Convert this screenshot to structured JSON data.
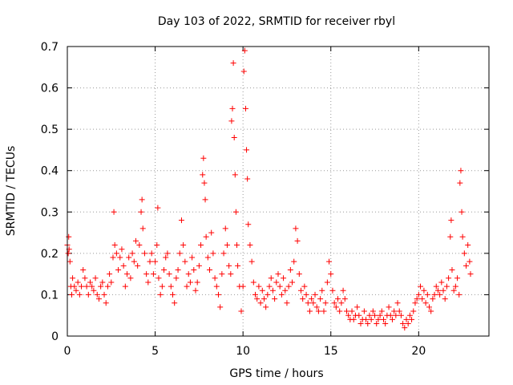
{
  "chart_data": {
    "type": "scatter",
    "title": "Day 103 of 2022, SRMTID for receiver rbyl",
    "xlabel": "GPS time / hours",
    "ylabel": "SRMTID / TECUs",
    "xlim": [
      0,
      24
    ],
    "ylim": [
      0,
      0.7
    ],
    "xticks": [
      0,
      5,
      10,
      15,
      20
    ],
    "yticks": [
      0,
      0.1,
      0.2,
      0.3,
      0.4,
      0.5,
      0.6,
      0.7
    ],
    "grid": true,
    "marker": "+",
    "color": "#ff0000",
    "series": [
      {
        "name": "SRMTID",
        "points": [
          [
            0.0,
            0.22
          ],
          [
            0.05,
            0.2
          ],
          [
            0.08,
            0.24
          ],
          [
            0.1,
            0.21
          ],
          [
            0.15,
            0.18
          ],
          [
            0.2,
            0.12
          ],
          [
            0.25,
            0.1
          ],
          [
            0.3,
            0.14
          ],
          [
            0.4,
            0.12
          ],
          [
            0.5,
            0.11
          ],
          [
            0.6,
            0.13
          ],
          [
            0.7,
            0.1
          ],
          [
            0.8,
            0.12
          ],
          [
            0.9,
            0.16
          ],
          [
            1.0,
            0.14
          ],
          [
            1.1,
            0.12
          ],
          [
            1.2,
            0.1
          ],
          [
            1.3,
            0.13
          ],
          [
            1.4,
            0.12
          ],
          [
            1.5,
            0.11
          ],
          [
            1.6,
            0.14
          ],
          [
            1.7,
            0.1
          ],
          [
            1.8,
            0.09
          ],
          [
            1.9,
            0.12
          ],
          [
            2.0,
            0.13
          ],
          [
            2.1,
            0.1
          ],
          [
            2.2,
            0.08
          ],
          [
            2.3,
            0.12
          ],
          [
            2.4,
            0.15
          ],
          [
            2.5,
            0.13
          ],
          [
            2.6,
            0.19
          ],
          [
            2.65,
            0.3
          ],
          [
            2.7,
            0.22
          ],
          [
            2.8,
            0.2
          ],
          [
            2.9,
            0.16
          ],
          [
            3.0,
            0.19
          ],
          [
            3.1,
            0.21
          ],
          [
            3.2,
            0.17
          ],
          [
            3.3,
            0.12
          ],
          [
            3.4,
            0.15
          ],
          [
            3.5,
            0.19
          ],
          [
            3.6,
            0.14
          ],
          [
            3.7,
            0.2
          ],
          [
            3.8,
            0.18
          ],
          [
            3.9,
            0.23
          ],
          [
            4.0,
            0.17
          ],
          [
            4.1,
            0.22
          ],
          [
            4.2,
            0.3
          ],
          [
            4.25,
            0.33
          ],
          [
            4.3,
            0.26
          ],
          [
            4.4,
            0.2
          ],
          [
            4.5,
            0.15
          ],
          [
            4.6,
            0.13
          ],
          [
            4.7,
            0.18
          ],
          [
            4.8,
            0.2
          ],
          [
            4.9,
            0.15
          ],
          [
            5.0,
            0.18
          ],
          [
            5.1,
            0.22
          ],
          [
            5.15,
            0.31
          ],
          [
            5.2,
            0.14
          ],
          [
            5.3,
            0.1
          ],
          [
            5.4,
            0.12
          ],
          [
            5.5,
            0.16
          ],
          [
            5.6,
            0.19
          ],
          [
            5.7,
            0.2
          ],
          [
            5.8,
            0.15
          ],
          [
            5.9,
            0.12
          ],
          [
            6.0,
            0.1
          ],
          [
            6.1,
            0.08
          ],
          [
            6.2,
            0.14
          ],
          [
            6.3,
            0.16
          ],
          [
            6.4,
            0.2
          ],
          [
            6.5,
            0.28
          ],
          [
            6.6,
            0.22
          ],
          [
            6.7,
            0.18
          ],
          [
            6.8,
            0.12
          ],
          [
            6.9,
            0.15
          ],
          [
            7.0,
            0.13
          ],
          [
            7.1,
            0.19
          ],
          [
            7.2,
            0.16
          ],
          [
            7.3,
            0.11
          ],
          [
            7.4,
            0.13
          ],
          [
            7.5,
            0.17
          ],
          [
            7.6,
            0.22
          ],
          [
            7.7,
            0.39
          ],
          [
            7.75,
            0.43
          ],
          [
            7.8,
            0.37
          ],
          [
            7.85,
            0.33
          ],
          [
            7.9,
            0.24
          ],
          [
            8.0,
            0.19
          ],
          [
            8.1,
            0.16
          ],
          [
            8.2,
            0.25
          ],
          [
            8.3,
            0.2
          ],
          [
            8.4,
            0.14
          ],
          [
            8.5,
            0.12
          ],
          [
            8.6,
            0.1
          ],
          [
            8.7,
            0.07
          ],
          [
            8.8,
            0.15
          ],
          [
            8.9,
            0.2
          ],
          [
            9.0,
            0.26
          ],
          [
            9.1,
            0.22
          ],
          [
            9.2,
            0.17
          ],
          [
            9.3,
            0.15
          ],
          [
            9.35,
            0.52
          ],
          [
            9.4,
            0.55
          ],
          [
            9.45,
            0.66
          ],
          [
            9.5,
            0.48
          ],
          [
            9.55,
            0.39
          ],
          [
            9.6,
            0.3
          ],
          [
            9.65,
            0.22
          ],
          [
            9.7,
            0.17
          ],
          [
            9.8,
            0.12
          ],
          [
            9.9,
            0.06
          ],
          [
            10.0,
            0.12
          ],
          [
            10.05,
            0.64
          ],
          [
            10.1,
            0.69
          ],
          [
            10.15,
            0.55
          ],
          [
            10.2,
            0.45
          ],
          [
            10.25,
            0.38
          ],
          [
            10.3,
            0.27
          ],
          [
            10.4,
            0.22
          ],
          [
            10.5,
            0.18
          ],
          [
            10.6,
            0.13
          ],
          [
            10.7,
            0.1
          ],
          [
            10.8,
            0.09
          ],
          [
            10.9,
            0.12
          ],
          [
            11.0,
            0.08
          ],
          [
            11.1,
            0.11
          ],
          [
            11.2,
            0.09
          ],
          [
            11.3,
            0.07
          ],
          [
            11.4,
            0.1
          ],
          [
            11.5,
            0.12
          ],
          [
            11.6,
            0.14
          ],
          [
            11.7,
            0.11
          ],
          [
            11.8,
            0.09
          ],
          [
            11.9,
            0.13
          ],
          [
            12.0,
            0.15
          ],
          [
            12.1,
            0.12
          ],
          [
            12.2,
            0.1
          ],
          [
            12.3,
            0.14
          ],
          [
            12.4,
            0.11
          ],
          [
            12.5,
            0.08
          ],
          [
            12.6,
            0.12
          ],
          [
            12.7,
            0.16
          ],
          [
            12.8,
            0.13
          ],
          [
            12.9,
            0.18
          ],
          [
            13.0,
            0.26
          ],
          [
            13.1,
            0.23
          ],
          [
            13.2,
            0.15
          ],
          [
            13.3,
            0.11
          ],
          [
            13.4,
            0.09
          ],
          [
            13.5,
            0.12
          ],
          [
            13.6,
            0.1
          ],
          [
            13.7,
            0.08
          ],
          [
            13.8,
            0.06
          ],
          [
            13.9,
            0.09
          ],
          [
            14.0,
            0.08
          ],
          [
            14.1,
            0.1
          ],
          [
            14.2,
            0.07
          ],
          [
            14.3,
            0.06
          ],
          [
            14.4,
            0.09
          ],
          [
            14.5,
            0.11
          ],
          [
            14.6,
            0.06
          ],
          [
            14.7,
            0.08
          ],
          [
            14.8,
            0.13
          ],
          [
            14.9,
            0.18
          ],
          [
            15.0,
            0.15
          ],
          [
            15.1,
            0.11
          ],
          [
            15.2,
            0.08
          ],
          [
            15.3,
            0.07
          ],
          [
            15.4,
            0.09
          ],
          [
            15.5,
            0.06
          ],
          [
            15.6,
            0.08
          ],
          [
            15.7,
            0.11
          ],
          [
            15.8,
            0.09
          ],
          [
            15.9,
            0.06
          ],
          [
            16.0,
            0.05
          ],
          [
            16.1,
            0.04
          ],
          [
            16.2,
            0.06
          ],
          [
            16.3,
            0.04
          ],
          [
            16.4,
            0.05
          ],
          [
            16.5,
            0.07
          ],
          [
            16.6,
            0.05
          ],
          [
            16.7,
            0.03
          ],
          [
            16.8,
            0.04
          ],
          [
            16.9,
            0.06
          ],
          [
            17.0,
            0.04
          ],
          [
            17.1,
            0.03
          ],
          [
            17.2,
            0.05
          ],
          [
            17.3,
            0.04
          ],
          [
            17.4,
            0.06
          ],
          [
            17.5,
            0.05
          ],
          [
            17.6,
            0.03
          ],
          [
            17.7,
            0.04
          ],
          [
            17.8,
            0.05
          ],
          [
            17.9,
            0.06
          ],
          [
            18.0,
            0.04
          ],
          [
            18.1,
            0.03
          ],
          [
            18.2,
            0.05
          ],
          [
            18.3,
            0.07
          ],
          [
            18.4,
            0.05
          ],
          [
            18.5,
            0.04
          ],
          [
            18.6,
            0.06
          ],
          [
            18.7,
            0.05
          ],
          [
            18.8,
            0.08
          ],
          [
            18.9,
            0.06
          ],
          [
            19.0,
            0.05
          ],
          [
            19.1,
            0.03
          ],
          [
            19.2,
            0.02
          ],
          [
            19.3,
            0.04
          ],
          [
            19.4,
            0.03
          ],
          [
            19.5,
            0.05
          ],
          [
            19.6,
            0.04
          ],
          [
            19.7,
            0.06
          ],
          [
            19.8,
            0.08
          ],
          [
            19.9,
            0.09
          ],
          [
            20.0,
            0.1
          ],
          [
            20.1,
            0.12
          ],
          [
            20.2,
            0.09
          ],
          [
            20.3,
            0.11
          ],
          [
            20.4,
            0.08
          ],
          [
            20.5,
            0.1
          ],
          [
            20.6,
            0.07
          ],
          [
            20.7,
            0.06
          ],
          [
            20.8,
            0.09
          ],
          [
            20.9,
            0.1
          ],
          [
            21.0,
            0.12
          ],
          [
            21.1,
            0.11
          ],
          [
            21.2,
            0.1
          ],
          [
            21.3,
            0.13
          ],
          [
            21.4,
            0.11
          ],
          [
            21.5,
            0.09
          ],
          [
            21.6,
            0.12
          ],
          [
            21.7,
            0.14
          ],
          [
            21.8,
            0.24
          ],
          [
            21.85,
            0.28
          ],
          [
            21.9,
            0.16
          ],
          [
            22.0,
            0.11
          ],
          [
            22.1,
            0.12
          ],
          [
            22.2,
            0.14
          ],
          [
            22.3,
            0.1
          ],
          [
            22.35,
            0.37
          ],
          [
            22.4,
            0.4
          ],
          [
            22.45,
            0.3
          ],
          [
            22.5,
            0.24
          ],
          [
            22.6,
            0.2
          ],
          [
            22.7,
            0.17
          ],
          [
            22.8,
            0.22
          ],
          [
            22.9,
            0.18
          ],
          [
            22.95,
            0.15
          ]
        ]
      }
    ]
  }
}
